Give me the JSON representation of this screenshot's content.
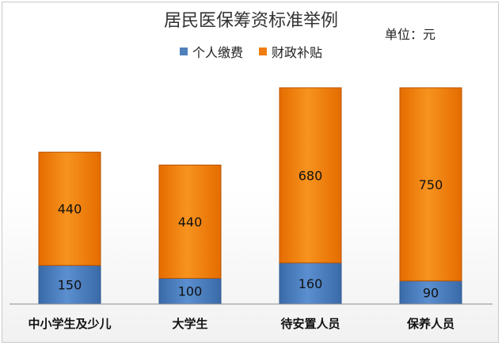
{
  "chart_data": {
    "type": "bar",
    "stacked": true,
    "title": "居民医保筹资标准举例",
    "unit_label": "单位：元",
    "categories": [
      "中小学生及少儿",
      "大学生",
      "待安置人员",
      "保养人员"
    ],
    "series": [
      {
        "name": "个人缴费",
        "values": [
          150,
          100,
          160,
          90
        ],
        "color": "#4f81bd"
      },
      {
        "name": "财政补贴",
        "values": [
          440,
          440,
          680,
          750
        ],
        "color": "#f07d10"
      }
    ],
    "ylim": [
      0,
      850
    ],
    "grid": false,
    "legend_position": "top"
  }
}
